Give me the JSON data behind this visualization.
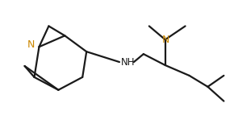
{
  "bg_color": "#ffffff",
  "line_color": "#1a1a1a",
  "N_color": "#cc8800",
  "lw": 1.6,
  "figsize": [
    2.9,
    1.64
  ],
  "dpi": 100,
  "xlim": [
    0,
    290
  ],
  "ylim": [
    0,
    164
  ]
}
